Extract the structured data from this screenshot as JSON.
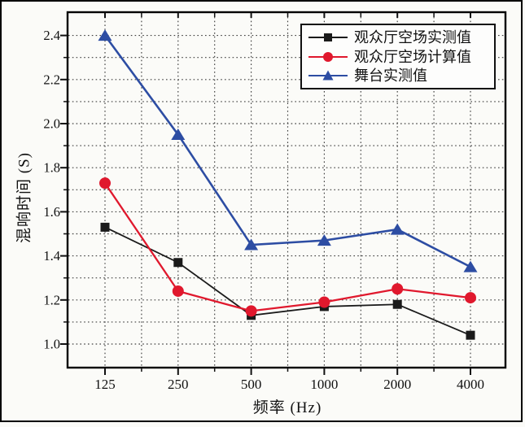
{
  "figure": {
    "background": "#fbfbf8",
    "frame_color": "#000000",
    "grid_style": "dotted",
    "grid_color": "#2a2a2a"
  },
  "chart_data": {
    "type": "line",
    "title": "",
    "xlabel": "频率 (Hz)",
    "ylabel": "混响时间 (S)",
    "x_scale": "log-octave",
    "categories": [
      "125",
      "250",
      "500",
      "1000",
      "2000",
      "4000"
    ],
    "y_ticks": [
      "1.0",
      "1.2",
      "1.4",
      "1.6",
      "1.8",
      "2.0",
      "2.2",
      "2.4"
    ],
    "ylim": [
      1.0,
      2.4
    ],
    "grid": {
      "horizontal_step": 0.1,
      "vertical": "major ticks plus half-octave minors",
      "style": "dotted"
    },
    "legend_position": "top-right-inside",
    "series": [
      {
        "name": "观众厅空场实测值",
        "marker": "square",
        "color": "#1a1a1a",
        "values": [
          1.53,
          1.37,
          1.13,
          1.17,
          1.18,
          1.04
        ]
      },
      {
        "name": "观众厅空场计算值",
        "marker": "circle",
        "color": "#e0182d",
        "values": [
          1.73,
          1.24,
          1.15,
          1.19,
          1.25,
          1.21
        ]
      },
      {
        "name": "舞台实测值",
        "marker": "triangle",
        "color": "#2d4da3",
        "values": [
          2.4,
          1.95,
          1.45,
          1.47,
          1.52,
          1.35
        ]
      }
    ]
  }
}
